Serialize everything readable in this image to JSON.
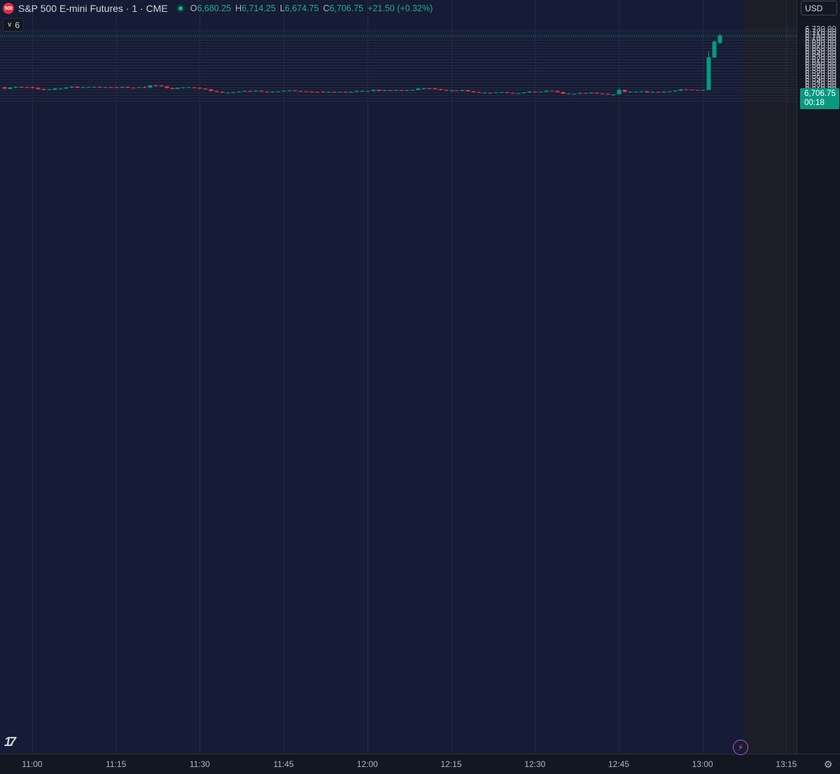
{
  "header": {
    "logo_text": "500",
    "title": "S&P 500 E-mini Futures · 1 · CME",
    "ohlc": [
      {
        "key": "O",
        "value": "6,680.25"
      },
      {
        "key": "H",
        "value": "6,714.25"
      },
      {
        "key": "L",
        "value": "6,674.75"
      },
      {
        "key": "C",
        "value": "6,706.75"
      }
    ],
    "change": "+21.50 (+0.32%)",
    "indicator_count": "6"
  },
  "currency": "USD",
  "last_price": {
    "price": "6,706.75",
    "countdown": "00:18"
  },
  "colors": {
    "background": "#131722",
    "plot_background": "#161c35",
    "up": "#089981",
    "down": "#f23645",
    "grid": "#232a42",
    "text": "#b2b5be"
  },
  "icons": {
    "logo": "tradingview-logo-icon",
    "flash": "lightning-icon",
    "settings": "gear-icon",
    "chevron": "chevron-down-icon"
  },
  "chart_data": {
    "type": "candlestick",
    "title": "",
    "xlabel": "",
    "ylabel": "",
    "ylim": [
      6465,
      6735
    ],
    "y_ticks": [
      6470,
      6480,
      6490,
      6500,
      6510,
      6520,
      6530,
      6540,
      6550,
      6560,
      6570,
      6580,
      6590,
      6600,
      6610,
      6620,
      6630,
      6640,
      6650,
      6660,
      6670,
      6680,
      6690,
      6700,
      6710,
      6720,
      6730
    ],
    "y_tick_labels": [
      "6,470.00",
      "6,480.00",
      "6,490.00",
      "6,500.00",
      "6,510.00",
      "6,520.00",
      "6,530.00",
      "6,540.00",
      "6,550.00",
      "6,560.00",
      "6,570.00",
      "6,580.00",
      "6,590.00",
      "6,600.00",
      "6,610.00",
      "6,620.00",
      "6,630.00",
      "6,640.00",
      "6,650.00",
      "6,660.00",
      "6,670.00",
      "6,680.00",
      "6,690.00",
      "6,700.00",
      "6,710.00",
      "6,720.00",
      "6,730.00"
    ],
    "x_ticks": [
      {
        "minute": 660,
        "label": "11:00"
      },
      {
        "minute": 675,
        "label": "11:15"
      },
      {
        "minute": 690,
        "label": "11:30"
      },
      {
        "minute": 705,
        "label": "11:45"
      },
      {
        "minute": 720,
        "label": "12:00"
      },
      {
        "minute": 735,
        "label": "12:15"
      },
      {
        "minute": 750,
        "label": "12:30"
      },
      {
        "minute": 765,
        "label": "12:45"
      },
      {
        "minute": 780,
        "label": "13:00"
      },
      {
        "minute": 795,
        "label": "13:15"
      }
    ],
    "last_price": 6706.75,
    "candles": [
      {
        "t": 655,
        "o": 6520,
        "h": 6521,
        "l": 6513,
        "c": 6515
      },
      {
        "t": 656,
        "o": 6514,
        "h": 6521,
        "l": 6512,
        "c": 6519
      },
      {
        "t": 657,
        "o": 6519,
        "h": 6523,
        "l": 6516,
        "c": 6521
      },
      {
        "t": 658,
        "o": 6521,
        "h": 6523,
        "l": 6517,
        "c": 6519
      },
      {
        "t": 659,
        "o": 6520,
        "h": 6522,
        "l": 6516,
        "c": 6518
      },
      {
        "t": 660,
        "o": 6520,
        "h": 6523,
        "l": 6515,
        "c": 6517
      },
      {
        "t": 661,
        "o": 6518,
        "h": 6519,
        "l": 6512,
        "c": 6513
      },
      {
        "t": 662,
        "o": 6513,
        "h": 6515,
        "l": 6509,
        "c": 6510
      },
      {
        "t": 663,
        "o": 6510,
        "h": 6513,
        "l": 6508,
        "c": 6512
      },
      {
        "t": 664,
        "o": 6511,
        "h": 6517,
        "l": 6509,
        "c": 6515
      },
      {
        "t": 665,
        "o": 6514,
        "h": 6516,
        "l": 6513,
        "c": 6515
      },
      {
        "t": 666,
        "o": 6515,
        "h": 6521,
        "l": 6514,
        "c": 6519
      },
      {
        "t": 667,
        "o": 6519,
        "h": 6524,
        "l": 6517,
        "c": 6522
      },
      {
        "t": 668,
        "o": 6522,
        "h": 6523,
        "l": 6517,
        "c": 6518
      },
      {
        "t": 669,
        "o": 6518,
        "h": 6521,
        "l": 6516,
        "c": 6520
      },
      {
        "t": 670,
        "o": 6520,
        "h": 6522,
        "l": 6519,
        "c": 6521
      },
      {
        "t": 671,
        "o": 6521,
        "h": 6523,
        "l": 6520,
        "c": 6521
      },
      {
        "t": 672,
        "o": 6521,
        "h": 6522,
        "l": 6518,
        "c": 6519
      },
      {
        "t": 673,
        "o": 6520,
        "h": 6521,
        "l": 6519,
        "c": 6520
      },
      {
        "t": 674,
        "o": 6520,
        "h": 6521,
        "l": 6518,
        "c": 6519
      },
      {
        "t": 675,
        "o": 6520,
        "h": 6521,
        "l": 6517,
        "c": 6518
      },
      {
        "t": 676,
        "o": 6518,
        "h": 6523,
        "l": 6516,
        "c": 6521
      },
      {
        "t": 677,
        "o": 6521,
        "h": 6522,
        "l": 6517,
        "c": 6518
      },
      {
        "t": 678,
        "o": 6518,
        "h": 6520,
        "l": 6516,
        "c": 6517
      },
      {
        "t": 679,
        "o": 6518,
        "h": 6521,
        "l": 6516,
        "c": 6520
      },
      {
        "t": 680,
        "o": 6520,
        "h": 6524,
        "l": 6517,
        "c": 6519
      },
      {
        "t": 681,
        "o": 6519,
        "h": 6526,
        "l": 6517,
        "c": 6526
      },
      {
        "t": 682,
        "o": 6526,
        "h": 6528,
        "l": 6521,
        "c": 6524
      },
      {
        "t": 683,
        "o": 6526,
        "h": 6527,
        "l": 6522,
        "c": 6523
      },
      {
        "t": 684,
        "o": 6523,
        "h": 6523,
        "l": 6515,
        "c": 6517
      },
      {
        "t": 685,
        "o": 6517,
        "h": 6518,
        "l": 6512,
        "c": 6514
      },
      {
        "t": 686,
        "o": 6514,
        "h": 6519,
        "l": 6513,
        "c": 6518
      },
      {
        "t": 687,
        "o": 6517,
        "h": 6520,
        "l": 6515,
        "c": 6519
      },
      {
        "t": 688,
        "o": 6519,
        "h": 6521,
        "l": 6518,
        "c": 6520
      },
      {
        "t": 689,
        "o": 6519,
        "h": 6520,
        "l": 6517,
        "c": 6518
      },
      {
        "t": 690,
        "o": 6518,
        "h": 6519,
        "l": 6514,
        "c": 6515
      },
      {
        "t": 691,
        "o": 6515,
        "h": 6516,
        "l": 6511,
        "c": 6512
      },
      {
        "t": 692,
        "o": 6512,
        "h": 6513,
        "l": 6505,
        "c": 6506
      },
      {
        "t": 693,
        "o": 6506,
        "h": 6507,
        "l": 6502,
        "c": 6503
      },
      {
        "t": 694,
        "o": 6503,
        "h": 6505,
        "l": 6500,
        "c": 6500
      },
      {
        "t": 695,
        "o": 6500,
        "h": 6502,
        "l": 6499,
        "c": 6500
      },
      {
        "t": 696,
        "o": 6499,
        "h": 6502,
        "l": 6497,
        "c": 6502
      },
      {
        "t": 697,
        "o": 6502,
        "h": 6506,
        "l": 6501,
        "c": 6504
      },
      {
        "t": 698,
        "o": 6504,
        "h": 6508,
        "l": 6503,
        "c": 6506
      },
      {
        "t": 699,
        "o": 6506,
        "h": 6508,
        "l": 6503,
        "c": 6504
      },
      {
        "t": 700,
        "o": 6504,
        "h": 6508,
        "l": 6503,
        "c": 6507
      },
      {
        "t": 701,
        "o": 6507,
        "h": 6508,
        "l": 6503,
        "c": 6504
      },
      {
        "t": 702,
        "o": 6504,
        "h": 6506,
        "l": 6502,
        "c": 6503
      },
      {
        "t": 703,
        "o": 6503,
        "h": 6505,
        "l": 6501,
        "c": 6504
      },
      {
        "t": 704,
        "o": 6503,
        "h": 6505,
        "l": 6501,
        "c": 6505
      },
      {
        "t": 705,
        "o": 6505,
        "h": 6508,
        "l": 6504,
        "c": 6507
      },
      {
        "t": 706,
        "o": 6507,
        "h": 6509,
        "l": 6505,
        "c": 6508
      },
      {
        "t": 707,
        "o": 6508,
        "h": 6510,
        "l": 6505,
        "c": 6506
      },
      {
        "t": 708,
        "o": 6506,
        "h": 6507,
        "l": 6504,
        "c": 6505
      },
      {
        "t": 709,
        "o": 6505,
        "h": 6506,
        "l": 6502,
        "c": 6504
      },
      {
        "t": 710,
        "o": 6504,
        "h": 6505,
        "l": 6502,
        "c": 6503
      },
      {
        "t": 711,
        "o": 6503,
        "h": 6504,
        "l": 6501,
        "c": 6502
      },
      {
        "t": 712,
        "o": 6504,
        "h": 6506,
        "l": 6501,
        "c": 6502
      },
      {
        "t": 713,
        "o": 6502,
        "h": 6504,
        "l": 6501,
        "c": 6503
      },
      {
        "t": 714,
        "o": 6503,
        "h": 6504,
        "l": 6501,
        "c": 6502
      },
      {
        "t": 715,
        "o": 6502,
        "h": 6503,
        "l": 6501,
        "c": 6503
      },
      {
        "t": 716,
        "o": 6503,
        "h": 6504,
        "l": 6501,
        "c": 6502
      },
      {
        "t": 717,
        "o": 6502,
        "h": 6504,
        "l": 6502,
        "c": 6503
      },
      {
        "t": 718,
        "o": 6503,
        "h": 6507,
        "l": 6502,
        "c": 6506
      },
      {
        "t": 719,
        "o": 6506,
        "h": 6509,
        "l": 6504,
        "c": 6506
      },
      {
        "t": 720,
        "o": 6505,
        "h": 6507,
        "l": 6504,
        "c": 6506
      },
      {
        "t": 721,
        "o": 6506,
        "h": 6511,
        "l": 6504,
        "c": 6510
      },
      {
        "t": 722,
        "o": 6510,
        "h": 6511,
        "l": 6505,
        "c": 6506
      },
      {
        "t": 723,
        "o": 6506,
        "h": 6510,
        "l": 6505,
        "c": 6509
      },
      {
        "t": 724,
        "o": 6509,
        "h": 6510,
        "l": 6506,
        "c": 6507
      },
      {
        "t": 725,
        "o": 6507,
        "h": 6510,
        "l": 6506,
        "c": 6509
      },
      {
        "t": 726,
        "o": 6509,
        "h": 6510,
        "l": 6506,
        "c": 6507
      },
      {
        "t": 727,
        "o": 6507,
        "h": 6510,
        "l": 6506,
        "c": 6509
      },
      {
        "t": 728,
        "o": 6509,
        "h": 6512,
        "l": 6508,
        "c": 6510
      },
      {
        "t": 729,
        "o": 6510,
        "h": 6517,
        "l": 6509,
        "c": 6515
      },
      {
        "t": 730,
        "o": 6514,
        "h": 6517,
        "l": 6512,
        "c": 6516
      },
      {
        "t": 731,
        "o": 6516,
        "h": 6517,
        "l": 6513,
        "c": 6514
      },
      {
        "t": 732,
        "o": 6516,
        "h": 6517,
        "l": 6512,
        "c": 6513
      },
      {
        "t": 733,
        "o": 6513,
        "h": 6514,
        "l": 6508,
        "c": 6510
      },
      {
        "t": 734,
        "o": 6510,
        "h": 6511,
        "l": 6506,
        "c": 6507
      },
      {
        "t": 735,
        "o": 6507,
        "h": 6509,
        "l": 6503,
        "c": 6508
      },
      {
        "t": 736,
        "o": 6508,
        "h": 6509,
        "l": 6505,
        "c": 6506
      },
      {
        "t": 737,
        "o": 6506,
        "h": 6510,
        "l": 6505,
        "c": 6509
      },
      {
        "t": 738,
        "o": 6509,
        "h": 6510,
        "l": 6504,
        "c": 6505
      },
      {
        "t": 739,
        "o": 6505,
        "h": 6506,
        "l": 6501,
        "c": 6502
      },
      {
        "t": 740,
        "o": 6502,
        "h": 6504,
        "l": 6499,
        "c": 6500
      },
      {
        "t": 741,
        "o": 6500,
        "h": 6502,
        "l": 6499,
        "c": 6500
      },
      {
        "t": 742,
        "o": 6500,
        "h": 6501,
        "l": 6498,
        "c": 6499
      },
      {
        "t": 743,
        "o": 6499,
        "h": 6502,
        "l": 6498,
        "c": 6501
      },
      {
        "t": 744,
        "o": 6501,
        "h": 6503,
        "l": 6500,
        "c": 6502
      },
      {
        "t": 745,
        "o": 6502,
        "h": 6503,
        "l": 6498,
        "c": 6499
      },
      {
        "t": 746,
        "o": 6499,
        "h": 6500,
        "l": 6497,
        "c": 6498
      },
      {
        "t": 747,
        "o": 6498,
        "h": 6499,
        "l": 6497,
        "c": 6498
      },
      {
        "t": 748,
        "o": 6498,
        "h": 6502,
        "l": 6497,
        "c": 6501
      },
      {
        "t": 749,
        "o": 6501,
        "h": 6506,
        "l": 6500,
        "c": 6504
      },
      {
        "t": 750,
        "o": 6504,
        "h": 6506,
        "l": 6502,
        "c": 6503
      },
      {
        "t": 751,
        "o": 6503,
        "h": 6505,
        "l": 6502,
        "c": 6504
      },
      {
        "t": 752,
        "o": 6503,
        "h": 6508,
        "l": 6502,
        "c": 6507
      },
      {
        "t": 753,
        "o": 6507,
        "h": 6508,
        "l": 6505,
        "c": 6506
      },
      {
        "t": 754,
        "o": 6506,
        "h": 6507,
        "l": 6501,
        "c": 6502
      },
      {
        "t": 755,
        "o": 6502,
        "h": 6503,
        "l": 6495,
        "c": 6496
      },
      {
        "t": 756,
        "o": 6496,
        "h": 6498,
        "l": 6495,
        "c": 6497
      },
      {
        "t": 757,
        "o": 6496,
        "h": 6497,
        "l": 6495,
        "c": 6496
      },
      {
        "t": 758,
        "o": 6496,
        "h": 6500,
        "l": 6495,
        "c": 6499
      },
      {
        "t": 759,
        "o": 6499,
        "h": 6500,
        "l": 6496,
        "c": 6497
      },
      {
        "t": 760,
        "o": 6497,
        "h": 6501,
        "l": 6496,
        "c": 6500
      },
      {
        "t": 761,
        "o": 6500,
        "h": 6501,
        "l": 6496,
        "c": 6497
      },
      {
        "t": 762,
        "o": 6497,
        "h": 6498,
        "l": 6494,
        "c": 6496
      },
      {
        "t": 763,
        "o": 6496,
        "h": 6497,
        "l": 6493,
        "c": 6494
      },
      {
        "t": 764,
        "o": 6494,
        "h": 6495,
        "l": 6490,
        "c": 6494
      },
      {
        "t": 765,
        "o": 6494,
        "h": 6518,
        "l": 6493,
        "c": 6510
      },
      {
        "t": 766,
        "o": 6510,
        "h": 6511,
        "l": 6502,
        "c": 6503
      },
      {
        "t": 767,
        "o": 6503,
        "h": 6505,
        "l": 6501,
        "c": 6504
      },
      {
        "t": 768,
        "o": 6503,
        "h": 6506,
        "l": 6502,
        "c": 6504
      },
      {
        "t": 769,
        "o": 6504,
        "h": 6506,
        "l": 6502,
        "c": 6505
      },
      {
        "t": 770,
        "o": 6505,
        "h": 6506,
        "l": 6500,
        "c": 6501
      },
      {
        "t": 771,
        "o": 6501,
        "h": 6505,
        "l": 6500,
        "c": 6503
      },
      {
        "t": 772,
        "o": 6503,
        "h": 6504,
        "l": 6500,
        "c": 6501
      },
      {
        "t": 773,
        "o": 6501,
        "h": 6505,
        "l": 6500,
        "c": 6504
      },
      {
        "t": 774,
        "o": 6504,
        "h": 6506,
        "l": 6503,
        "c": 6505
      },
      {
        "t": 775,
        "o": 6505,
        "h": 6509,
        "l": 6504,
        "c": 6507
      },
      {
        "t": 776,
        "o": 6507,
        "h": 6513,
        "l": 6506,
        "c": 6512
      },
      {
        "t": 777,
        "o": 6512,
        "h": 6513,
        "l": 6510,
        "c": 6511
      },
      {
        "t": 778,
        "o": 6511,
        "h": 6512,
        "l": 6509,
        "c": 6510
      },
      {
        "t": 779,
        "o": 6510,
        "h": 6511,
        "l": 6507,
        "c": 6509
      },
      {
        "t": 780,
        "o": 6509,
        "h": 6511,
        "l": 6508,
        "c": 6510
      },
      {
        "t": 781,
        "o": 6510,
        "h": 6650,
        "l": 6509,
        "c": 6628
      },
      {
        "t": 782,
        "o": 6627,
        "h": 6690,
        "l": 6626,
        "c": 6685
      },
      {
        "t": 783,
        "o": 6680.25,
        "h": 6714.25,
        "l": 6674.75,
        "c": 6706.75
      }
    ]
  }
}
